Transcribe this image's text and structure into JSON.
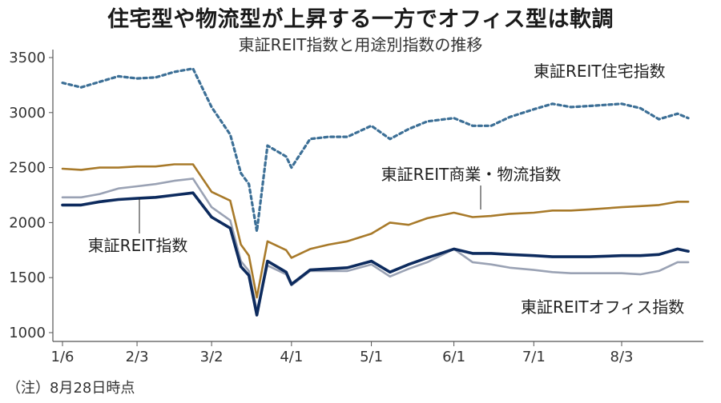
{
  "header": {
    "title": "住宅型や物流型が上昇する一方でオフィス型は軟調",
    "subtitle": "東証REIT指数と用途別指数の推移"
  },
  "footnote": "（注）8月28日時点",
  "chart_data": {
    "type": "line",
    "title": "東証REIT指数と用途別指数の推移",
    "xlabel": "",
    "ylabel": "",
    "ylim": [
      1000,
      3500
    ],
    "yticks": [
      "1000",
      "1500",
      "2000",
      "2500",
      "3000",
      "3500"
    ],
    "xticks": [
      "1/6",
      "2/3",
      "3/2",
      "4/1",
      "5/1",
      "6/1",
      "7/1",
      "8/3"
    ],
    "x": [
      "1/6",
      "1/13",
      "1/20",
      "1/27",
      "2/3",
      "2/10",
      "2/17",
      "2/24",
      "3/2",
      "3/9",
      "3/13",
      "3/16",
      "3/19",
      "3/23",
      "3/30",
      "4/1",
      "4/8",
      "4/15",
      "4/22",
      "5/1",
      "5/8",
      "5/15",
      "5/22",
      "6/1",
      "6/8",
      "6/15",
      "6/22",
      "7/1",
      "7/8",
      "7/15",
      "7/22",
      "8/3",
      "8/10",
      "8/17",
      "8/24",
      "8/28"
    ],
    "series": [
      {
        "name": "東証REIT住宅指数",
        "color": "#3c6f96",
        "style": "dotted",
        "values": [
          3270,
          3230,
          3280,
          3330,
          3310,
          3320,
          3370,
          3400,
          3050,
          2800,
          2450,
          2350,
          1920,
          2700,
          2600,
          2500,
          2760,
          2780,
          2780,
          2880,
          2760,
          2850,
          2920,
          2950,
          2880,
          2880,
          2960,
          3030,
          3080,
          3050,
          3060,
          3080,
          3040,
          2940,
          2990,
          2950
        ]
      },
      {
        "name": "東証REIT商業・物流指数",
        "color": "#a87a2a",
        "style": "solid",
        "values": [
          2490,
          2480,
          2500,
          2500,
          2510,
          2510,
          2530,
          2530,
          2280,
          2200,
          1800,
          1700,
          1320,
          1830,
          1750,
          1680,
          1760,
          1800,
          1830,
          1900,
          2000,
          1980,
          2040,
          2090,
          2050,
          2060,
          2080,
          2090,
          2110,
          2110,
          2120,
          2140,
          2150,
          2160,
          2190,
          2190
        ]
      },
      {
        "name": "東証REIT指数",
        "color": "#0d2b5e",
        "style": "solid",
        "values": [
          2160,
          2160,
          2190,
          2210,
          2220,
          2230,
          2250,
          2270,
          2050,
          1950,
          1600,
          1520,
          1160,
          1650,
          1550,
          1440,
          1570,
          1580,
          1590,
          1650,
          1550,
          1620,
          1680,
          1760,
          1720,
          1720,
          1710,
          1700,
          1690,
          1690,
          1690,
          1700,
          1700,
          1710,
          1760,
          1740
        ]
      },
      {
        "name": "東証REITオフィス指数",
        "color": "#9aa2b4",
        "style": "solid",
        "values": [
          2230,
          2230,
          2260,
          2310,
          2330,
          2350,
          2380,
          2400,
          2140,
          2020,
          1650,
          1560,
          1200,
          1610,
          1530,
          1430,
          1560,
          1560,
          1560,
          1620,
          1510,
          1580,
          1640,
          1760,
          1640,
          1620,
          1590,
          1570,
          1550,
          1540,
          1540,
          1540,
          1530,
          1560,
          1640,
          1640
        ]
      }
    ],
    "annotations": [
      "東証REIT住宅指数",
      "東証REIT商業・物流指数",
      "東証REIT指数",
      "東証REITオフィス指数"
    ],
    "grid": false
  }
}
